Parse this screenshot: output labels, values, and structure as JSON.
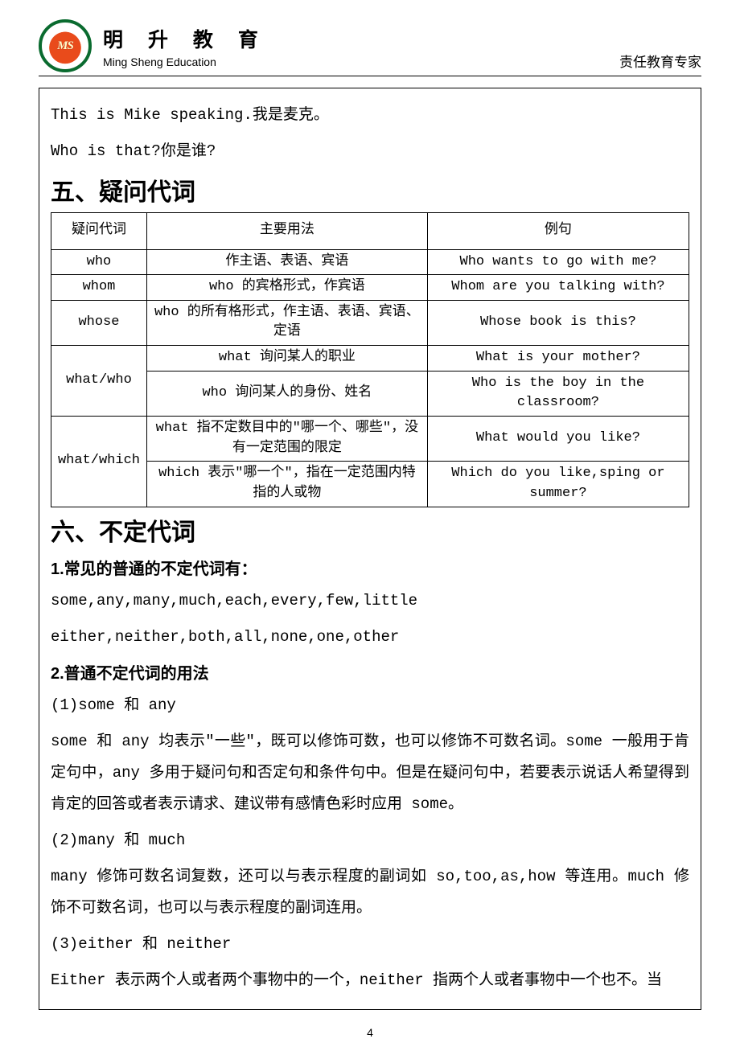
{
  "header": {
    "brand_cn": "明 升 教 育",
    "brand_en": "Ming Sheng Education",
    "logo_letters": "MS",
    "tagline": "责任教育专家"
  },
  "intro": {
    "line1": "This is Mike speaking.我是麦克。",
    "line2": "Who is that?你是谁?"
  },
  "section5": {
    "title": "五、疑问代词",
    "table": {
      "headers": [
        "疑问代词",
        "主要用法",
        "例句"
      ],
      "rows": [
        {
          "c1": "who",
          "c2": "作主语、表语、宾语",
          "c3": "Who wants to go with me?"
        },
        {
          "c1": "whom",
          "c2": "who 的宾格形式，作宾语",
          "c3": "Whom are you talking with?"
        },
        {
          "c1": "whose",
          "c2": "who 的所有格形式，作主语、表语、宾语、定语",
          "c3": "Whose book is this?"
        }
      ],
      "group1": {
        "c1": "what/who",
        "r1c2": "what 询问某人的职业",
        "r1c3": "What is your mother?",
        "r2c2": "who 询问某人的身份、姓名",
        "r2c3": "Who is the boy in the classroom?"
      },
      "group2": {
        "c1": "what/which",
        "r1c2": "what 指不定数目中的\"哪一个、哪些\"，没有一定范围的限定",
        "r1c3": "What would you like?",
        "r2c2": "which 表示\"哪一个\"，指在一定范围内特指的人或物",
        "r2c3": "Which do you like,sping or summer?"
      }
    }
  },
  "section6": {
    "title": "六、不定代词",
    "sub1_title": "1.常见的普通的不定代词有：",
    "sub1_line1": "some,any,many,much,each,every,few,little",
    "sub1_line2": "either,neither,both,all,none,one,other",
    "sub2_title": "2.普通不定代词的用法",
    "p1_label": "(1)some 和 any",
    "p1_body": "some 和 any 均表示\"一些\"，既可以修饰可数，也可以修饰不可数名词。some 一般用于肯定句中，any 多用于疑问句和否定句和条件句中。但是在疑问句中，若要表示说话人希望得到肯定的回答或者表示请求、建议带有感情色彩时应用 some。",
    "p2_label": "(2)many 和 much",
    "p2_body": "many 修饰可数名词复数，还可以与表示程度的副词如 so,too,as,how 等连用。much 修饰不可数名词，也可以与表示程度的副词连用。",
    "p3_label": "(3)either 和 neither",
    "p3_body": "Either 表示两个人或者两个事物中的一个，neither 指两个人或者事物中一个也不。当"
  },
  "page_number": "4"
}
